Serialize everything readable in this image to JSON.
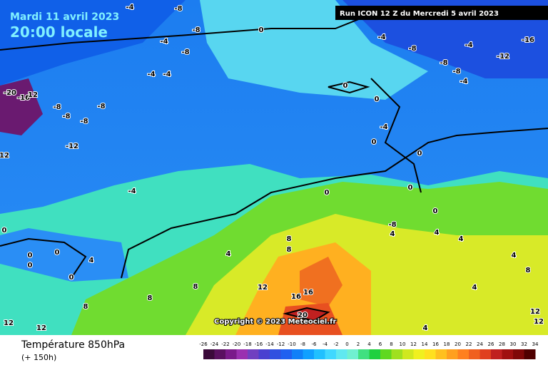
{
  "header": {
    "date": "Mardi 11 avril 2023",
    "time": "20:00 locale",
    "run": "Run ICON 12 Z du Mercredi 5 avril 2023"
  },
  "copyright": "Copyright © 2023 Meteociel.fr",
  "legend": {
    "title": "Température 850hPa",
    "subtitle": "(+ 150h)",
    "ticks": [
      -26,
      -24,
      -22,
      -20,
      -18,
      -16,
      -14,
      -12,
      -10,
      -8,
      -6,
      -4,
      -2,
      0,
      2,
      4,
      6,
      8,
      10,
      12,
      14,
      16,
      18,
      20,
      22,
      24,
      26,
      28,
      30,
      32,
      34
    ],
    "colors": [
      "#3b0a3a",
      "#5a1060",
      "#7a1a8a",
      "#9a30b0",
      "#7040c0",
      "#4a40d0",
      "#3050e0",
      "#2060f0",
      "#1080f8",
      "#10a0ff",
      "#20c0ff",
      "#40d8ff",
      "#60e8f0",
      "#70f0d0",
      "#40e080",
      "#20d040",
      "#60d820",
      "#a0e020",
      "#d0e820",
      "#f0f020",
      "#ffe020",
      "#ffc020",
      "#ffa020",
      "#ff8020",
      "#f06020",
      "#e04020",
      "#c02020",
      "#a01010",
      "#800808",
      "#500000"
    ]
  },
  "contour_labels": [
    "-4",
    "-8",
    "-8",
    "-4",
    "-8",
    "0",
    "-4",
    "-4",
    "-20",
    "-16",
    "12",
    "-8",
    "-8",
    "-8",
    "-8",
    "-12",
    "12",
    "-4",
    "0",
    "0",
    "0",
    "0",
    "0",
    "4",
    "8",
    "8",
    "8",
    "4",
    "12",
    "12",
    "12",
    "0",
    "-4",
    "-8",
    "-4",
    "-16",
    "-12",
    "-8",
    "-8",
    "-4",
    "0",
    "-4",
    "0",
    "0",
    "0",
    "0",
    "0",
    "-8",
    "4",
    "8",
    "8",
    "4",
    "4",
    "4",
    "8",
    "16",
    "16",
    "20",
    "4",
    "4",
    "12",
    "12"
  ]
}
